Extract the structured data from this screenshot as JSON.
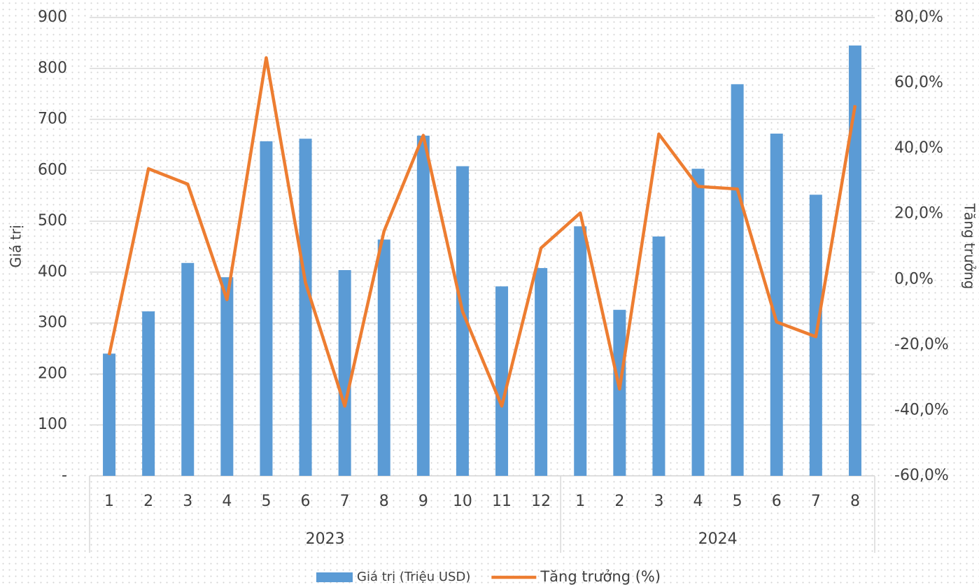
{
  "chart_data": {
    "type": "bar_line",
    "category_groups": [
      {
        "name": "2023",
        "categories": [
          "1",
          "2",
          "3",
          "4",
          "5",
          "6",
          "7",
          "8",
          "9",
          "10",
          "11",
          "12"
        ]
      },
      {
        "name": "2024",
        "categories": [
          "1",
          "2",
          "3",
          "4",
          "5",
          "6",
          "7",
          "8"
        ]
      }
    ],
    "series": [
      {
        "name": "Giá trị (Triệu USD)",
        "type": "bar",
        "color": "#5b9bd5",
        "axis": "y",
        "values": [
          240,
          323,
          418,
          390,
          657,
          662,
          404,
          464,
          668,
          608,
          372,
          408,
          490,
          326,
          470,
          603,
          769,
          672,
          552,
          845
        ]
      },
      {
        "name": "Tăng trưởng (%)",
        "type": "line",
        "color": "#ed7d31",
        "axis": "y2",
        "values": [
          -23.1,
          33.8,
          29.1,
          -6.2,
          67.7,
          -1.0,
          -38.7,
          14.7,
          44.0,
          -9.8,
          -38.7,
          9.6,
          20.3,
          -33.5,
          44.4,
          28.4,
          27.6,
          -13.0,
          -17.5,
          53.2
        ]
      }
    ],
    "ylabel": "Giá trị",
    "y2label": "Tăng trưởng",
    "ylim": [
      0,
      900
    ],
    "yticks": [
      {
        "value": 0,
        "label": "-"
      },
      100,
      200,
      300,
      400,
      500,
      600,
      700,
      800,
      900
    ],
    "y2lim": [
      -60,
      80
    ],
    "y2ticks": [
      {
        "value": -60,
        "label": "-60,0%"
      },
      {
        "value": -40,
        "label": "-40,0%"
      },
      {
        "value": -20,
        "label": "-20,0%"
      },
      {
        "value": 0,
        "label": "0,0%"
      },
      {
        "value": 20,
        "label": "20,0%"
      },
      {
        "value": 40,
        "label": "40,0%"
      },
      {
        "value": 60,
        "label": "60,0%"
      },
      {
        "value": 80,
        "label": "80,0%"
      }
    ],
    "grid": true,
    "legend": "bottom"
  }
}
